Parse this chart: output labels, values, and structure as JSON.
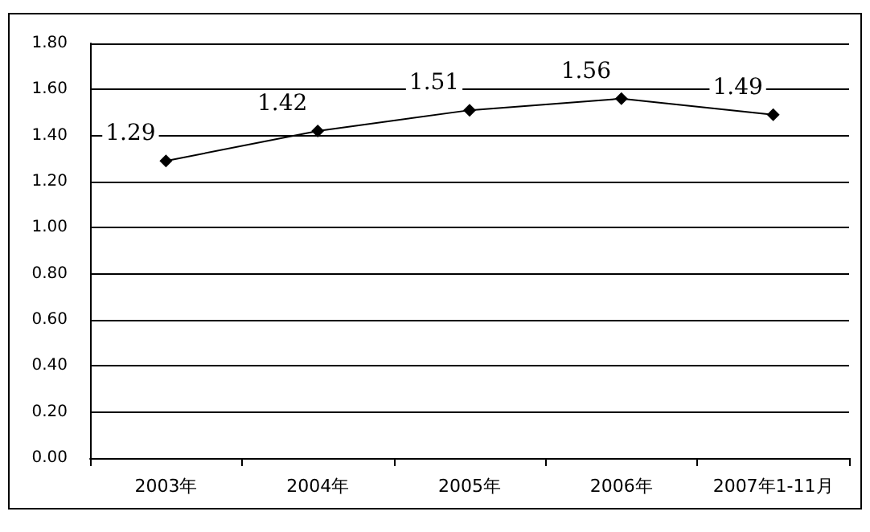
{
  "chart_data": {
    "type": "line",
    "categories": [
      "2003年",
      "2004年",
      "2005年",
      "2006年",
      "2007年1-11月"
    ],
    "series": [
      {
        "color": "#000000",
        "values": [
          1.29,
          1.42,
          1.51,
          1.56,
          1.49
        ]
      }
    ],
    "ylim": [
      0,
      1.8
    ],
    "yticks": [
      {
        "value": 0,
        "label": "0.00"
      },
      {
        "value": 0.2,
        "label": "0.20"
      },
      {
        "value": 0.4,
        "label": "0.40"
      },
      {
        "value": 0.6,
        "label": "0.60"
      },
      {
        "value": 0.8,
        "label": "0.80"
      },
      {
        "value": 1.0,
        "label": "1.00"
      },
      {
        "value": 1.2,
        "label": "1.20"
      },
      {
        "value": 1.4,
        "label": "1.40"
      },
      {
        "value": 1.6,
        "label": "1.60"
      },
      {
        "value": 1.8,
        "label": "1.80"
      }
    ],
    "grid": "y",
    "marker": "diamond",
    "line_style": "solid",
    "data_labels": true
  }
}
